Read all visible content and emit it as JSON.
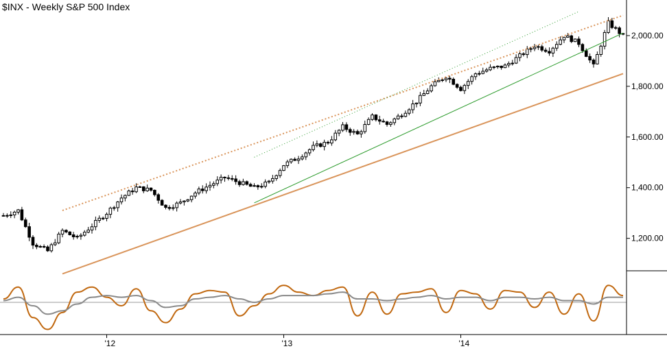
{
  "title": "$INX - Weekly  S&P 500 Index",
  "colors": {
    "candle": "#000000",
    "orange_trend": "#d9945a",
    "green_trend": "#2a9a2a",
    "osc_fast": "#c0670e",
    "osc_slow": "#8a8a8a",
    "axis": "#000000"
  },
  "chart_data": {
    "type": "candlestick",
    "title": "$INX - Weekly  S&P 500 Index",
    "y_axis": {
      "ticks": [
        1200,
        1400,
        1600,
        1800,
        2000
      ],
      "tick_labels": [
        "1,200.00",
        "1,400.00",
        "1,600.00",
        "1,800.00",
        "2,000.00"
      ],
      "range": [
        1070,
        2110
      ]
    },
    "x_axis": {
      "tick_labels": [
        "'12",
        "'13",
        "'14"
      ],
      "tick_dates": [
        "2012-01",
        "2013-01",
        "2014-01"
      ],
      "range_dates": [
        "2011-06",
        "2014-12"
      ]
    },
    "price_series_approx": [
      [
        "2011-06",
        1290
      ],
      [
        "2011-07",
        1310
      ],
      [
        "2011-08",
        1180
      ],
      [
        "2011-09",
        1150
      ],
      [
        "2011-10",
        1230
      ],
      [
        "2011-11",
        1200
      ],
      [
        "2011-12",
        1250
      ],
      [
        "2012-01",
        1300
      ],
      [
        "2012-02",
        1360
      ],
      [
        "2012-03",
        1400
      ],
      [
        "2012-04",
        1390
      ],
      [
        "2012-05",
        1320
      ],
      [
        "2012-06",
        1340
      ],
      [
        "2012-07",
        1380
      ],
      [
        "2012-08",
        1410
      ],
      [
        "2012-09",
        1440
      ],
      [
        "2012-10",
        1420
      ],
      [
        "2012-11",
        1400
      ],
      [
        "2012-12",
        1420
      ],
      [
        "2013-01",
        1490
      ],
      [
        "2013-02",
        1520
      ],
      [
        "2013-03",
        1560
      ],
      [
        "2013-04",
        1580
      ],
      [
        "2013-05",
        1640
      ],
      [
        "2013-06",
        1610
      ],
      [
        "2013-07",
        1680
      ],
      [
        "2013-08",
        1650
      ],
      [
        "2013-09",
        1690
      ],
      [
        "2013-10",
        1740
      ],
      [
        "2013-11",
        1800
      ],
      [
        "2013-12",
        1840
      ],
      [
        "2014-01",
        1790
      ],
      [
        "2014-02",
        1850
      ],
      [
        "2014-03",
        1870
      ],
      [
        "2014-04",
        1880
      ],
      [
        "2014-05",
        1920
      ],
      [
        "2014-06",
        1960
      ],
      [
        "2014-07",
        1940
      ],
      [
        "2014-08",
        2000
      ],
      [
        "2014-09",
        1970
      ],
      [
        "2014-10",
        1880
      ],
      [
        "2014-11",
        2050
      ],
      [
        "2014-12",
        2000
      ]
    ],
    "oscillator": {
      "series": [
        {
          "color": "#c0670e",
          "values_approx": [
            0.2,
            0.9,
            -0.9,
            -1.6,
            -0.6,
            0.6,
            0.9,
            0.3,
            -0.2,
            0.8,
            -0.5,
            -1.2,
            -0.4,
            0.5,
            0.7,
            0.6,
            -0.8,
            -0.2,
            0.5,
            1.0,
            0.6,
            0.4,
            0.7,
            0.9,
            -0.8,
            0.6,
            -0.7,
            0.5,
            0.6,
            0.8,
            -0.6,
            0.7,
            0.5,
            -0.4,
            0.7,
            0.6,
            -0.3,
            0.6,
            -0.7,
            0.5,
            -1.1,
            1.0,
            0.4
          ]
        },
        {
          "color": "#8a8a8a",
          "values_approx": [
            0.1,
            0.3,
            -0.2,
            -0.7,
            -0.5,
            -0.1,
            0.3,
            0.4,
            0.3,
            0.4,
            0.1,
            -0.3,
            -0.2,
            0.2,
            0.3,
            0.4,
            0.2,
            0.0,
            0.2,
            0.4,
            0.4,
            0.4,
            0.5,
            0.6,
            0.2,
            0.2,
            0.1,
            0.2,
            0.3,
            0.4,
            0.2,
            0.3,
            0.3,
            0.1,
            0.3,
            0.3,
            0.2,
            0.3,
            0.1,
            0.1,
            -0.1,
            0.3,
            0.3
          ]
        }
      ],
      "zero_line": 0
    },
    "trendlines": [
      {
        "style": "solid",
        "color": "#d9945a",
        "from": [
          "2011-10",
          1060
        ],
        "to": [
          "2014-12",
          1850
        ]
      },
      {
        "style": "dotted",
        "color": "#d9945a",
        "from": [
          "2011-10",
          1310
        ],
        "to": [
          "2014-12",
          2080
        ]
      },
      {
        "style": "solid",
        "color": "#2a9a2a",
        "from": [
          "2012-11",
          1340
        ],
        "to": [
          "2014-12",
          2010
        ]
      },
      {
        "style": "dotted",
        "color": "#2a9a2a",
        "from": [
          "2012-11",
          1520
        ],
        "to": [
          "2014-09",
          2095
        ]
      }
    ]
  }
}
